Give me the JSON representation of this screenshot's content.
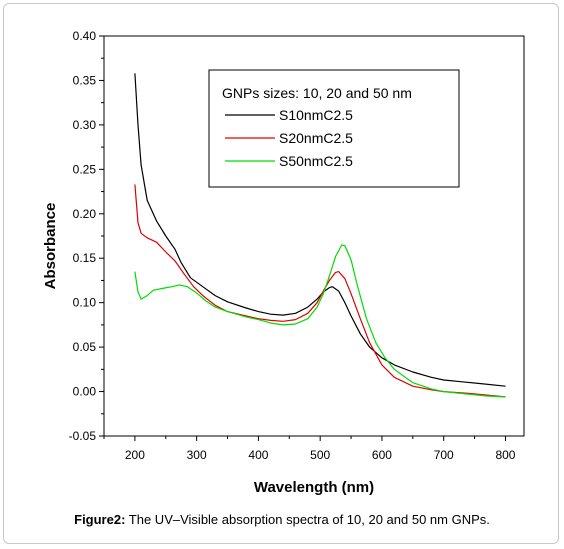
{
  "caption": {
    "label": "Figure2:",
    "text": " The UV–Visible absorption spectra of 10, 20 and 50 nm GNPs."
  },
  "chart_data": {
    "type": "line",
    "title": "",
    "xlabel": "Wavelength (nm)",
    "ylabel": "Absorbance",
    "xlim": [
      150,
      830
    ],
    "ylim": [
      -0.05,
      0.4
    ],
    "xticks": [
      200,
      300,
      400,
      500,
      600,
      700,
      800
    ],
    "yticks": [
      -0.05,
      0.0,
      0.05,
      0.1,
      0.15,
      0.2,
      0.25,
      0.3,
      0.35,
      0.4
    ],
    "ytick_labels": [
      "-0.05",
      "0.00",
      "0.05",
      "0.10",
      "0.15",
      "0.20",
      "0.25",
      "0.30",
      "0.35",
      "0.40"
    ],
    "legend": {
      "title": "GNPs sizes: 10, 20 and 50 nm",
      "position": "top-right"
    },
    "series": [
      {
        "name": "S10nmC2.5",
        "color": "#000000",
        "points": [
          [
            200,
            0.358
          ],
          [
            205,
            0.3
          ],
          [
            210,
            0.255
          ],
          [
            220,
            0.215
          ],
          [
            235,
            0.192
          ],
          [
            250,
            0.175
          ],
          [
            265,
            0.16
          ],
          [
            275,
            0.145
          ],
          [
            290,
            0.128
          ],
          [
            310,
            0.118
          ],
          [
            330,
            0.108
          ],
          [
            350,
            0.101
          ],
          [
            380,
            0.094
          ],
          [
            400,
            0.09
          ],
          [
            420,
            0.087
          ],
          [
            440,
            0.086
          ],
          [
            460,
            0.088
          ],
          [
            480,
            0.095
          ],
          [
            495,
            0.104
          ],
          [
            505,
            0.112
          ],
          [
            515,
            0.117
          ],
          [
            520,
            0.118
          ],
          [
            530,
            0.113
          ],
          [
            540,
            0.1
          ],
          [
            550,
            0.085
          ],
          [
            565,
            0.065
          ],
          [
            580,
            0.05
          ],
          [
            600,
            0.038
          ],
          [
            620,
            0.03
          ],
          [
            650,
            0.022
          ],
          [
            680,
            0.016
          ],
          [
            700,
            0.013
          ],
          [
            730,
            0.011
          ],
          [
            760,
            0.009
          ],
          [
            800,
            0.006
          ]
        ]
      },
      {
        "name": "S20nmC2.5",
        "color": "#e00000",
        "points": [
          [
            200,
            0.233
          ],
          [
            205,
            0.19
          ],
          [
            210,
            0.178
          ],
          [
            220,
            0.173
          ],
          [
            235,
            0.168
          ],
          [
            250,
            0.157
          ],
          [
            265,
            0.147
          ],
          [
            280,
            0.132
          ],
          [
            295,
            0.118
          ],
          [
            310,
            0.108
          ],
          [
            330,
            0.097
          ],
          [
            350,
            0.09
          ],
          [
            380,
            0.085
          ],
          [
            400,
            0.082
          ],
          [
            420,
            0.08
          ],
          [
            440,
            0.079
          ],
          [
            460,
            0.081
          ],
          [
            480,
            0.088
          ],
          [
            495,
            0.1
          ],
          [
            505,
            0.113
          ],
          [
            515,
            0.125
          ],
          [
            525,
            0.134
          ],
          [
            530,
            0.135
          ],
          [
            540,
            0.127
          ],
          [
            550,
            0.11
          ],
          [
            565,
            0.082
          ],
          [
            580,
            0.055
          ],
          [
            600,
            0.03
          ],
          [
            620,
            0.016
          ],
          [
            650,
            0.006
          ],
          [
            680,
            0.002
          ],
          [
            700,
            0.0
          ],
          [
            740,
            -0.002
          ],
          [
            770,
            -0.004
          ],
          [
            800,
            -0.006
          ]
        ]
      },
      {
        "name": "S50nmC2.5",
        "color": "#00dd00",
        "points": [
          [
            200,
            0.135
          ],
          [
            205,
            0.112
          ],
          [
            210,
            0.104
          ],
          [
            220,
            0.108
          ],
          [
            230,
            0.114
          ],
          [
            245,
            0.116
          ],
          [
            260,
            0.118
          ],
          [
            272,
            0.12
          ],
          [
            285,
            0.118
          ],
          [
            300,
            0.111
          ],
          [
            315,
            0.102
          ],
          [
            330,
            0.095
          ],
          [
            350,
            0.09
          ],
          [
            380,
            0.084
          ],
          [
            400,
            0.081
          ],
          [
            420,
            0.077
          ],
          [
            440,
            0.075
          ],
          [
            460,
            0.076
          ],
          [
            480,
            0.082
          ],
          [
            495,
            0.095
          ],
          [
            505,
            0.11
          ],
          [
            515,
            0.13
          ],
          [
            525,
            0.152
          ],
          [
            535,
            0.165
          ],
          [
            540,
            0.164
          ],
          [
            550,
            0.148
          ],
          [
            560,
            0.12
          ],
          [
            575,
            0.082
          ],
          [
            590,
            0.055
          ],
          [
            605,
            0.038
          ],
          [
            620,
            0.025
          ],
          [
            650,
            0.01
          ],
          [
            680,
            0.003
          ],
          [
            700,
            0.0
          ],
          [
            740,
            -0.003
          ],
          [
            770,
            -0.005
          ],
          [
            800,
            -0.006
          ]
        ]
      }
    ]
  }
}
